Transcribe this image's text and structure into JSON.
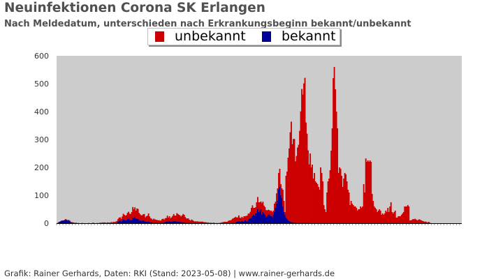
{
  "title": "Neuinfektionen Corona SK Erlangen",
  "subtitle": "Nach Meldedatum, unterschieden nach Erkrankungsbeginn bekannt/unbekannt",
  "footer": "Grafik: Rainer Gerhards, Daten: RKI (Stand: 2023-05-08) | www.rainer-gerhards.de",
  "colors": {
    "plot_background": "#cccccc",
    "unbekannt": "#cc0000",
    "bekannt": "#000099"
  },
  "chart_data": {
    "type": "bar",
    "stacked": true,
    "title": "Neuinfektionen Corona SK Erlangen",
    "subtitle": "Nach Meldedatum, unterschieden nach Erkrankungsbeginn bekannt/unbekannt",
    "xlabel": "",
    "ylabel": "",
    "ylim": [
      0,
      600
    ],
    "yticks": [
      0,
      100,
      200,
      300,
      400,
      500,
      600
    ],
    "legend": {
      "placement": "top-center",
      "entries": [
        "unbekannt",
        "bekannt"
      ]
    },
    "grid": false,
    "series": [
      {
        "name": "unbekannt",
        "values": [
          0,
          1,
          1,
          1,
          1,
          0,
          1,
          2,
          3,
          2,
          2,
          2,
          1,
          0,
          2,
          2,
          1,
          1,
          2,
          0,
          1,
          0,
          0,
          0,
          1,
          0,
          0,
          0,
          0,
          0,
          1,
          0,
          0,
          0,
          2,
          1,
          0,
          0,
          1,
          0,
          1,
          2,
          1,
          3,
          2,
          3,
          2,
          1,
          3,
          2,
          2,
          3,
          4,
          3,
          5,
          4,
          6,
          8,
          10,
          12,
          11,
          10,
          15,
          20,
          18,
          16,
          19,
          22,
          25,
          20,
          23,
          28,
          38,
          32,
          35,
          30,
          36,
          35,
          25,
          22,
          20,
          20,
          22,
          25,
          15,
          20,
          22,
          30,
          20,
          15,
          13,
          10,
          14,
          12,
          10,
          10,
          8,
          9,
          7,
          8,
          12,
          14,
          10,
          14,
          14,
          21,
          15,
          18,
          12,
          16,
          20,
          25,
          19,
          20,
          30,
          28,
          25,
          24,
          20,
          25,
          30,
          27,
          20,
          15,
          15,
          15,
          10,
          8,
          12,
          10,
          7,
          5,
          6,
          5,
          6,
          4,
          5,
          4,
          5,
          4,
          2,
          3,
          2,
          2,
          3,
          1,
          2,
          1,
          1,
          2,
          1,
          0,
          1,
          0,
          1,
          1,
          2,
          3,
          4,
          5,
          5,
          5,
          5,
          8,
          10,
          10,
          12,
          15,
          17,
          18,
          20,
          15,
          15,
          20,
          14,
          13,
          15,
          12,
          20,
          15,
          18,
          20,
          22,
          20,
          23,
          35,
          39,
          25,
          27,
          22,
          40,
          44,
          35,
          30,
          28,
          42,
          37,
          28,
          28,
          25,
          20,
          18,
          15,
          16,
          20,
          18,
          15,
          30,
          22,
          37,
          45,
          60,
          65,
          40,
          35,
          60,
          40,
          10,
          150,
          170,
          225,
          260,
          320,
          360,
          280,
          300,
          300,
          220,
          240,
          270,
          280,
          330,
          400,
          480,
          460,
          500,
          520,
          360,
          320,
          260,
          210,
          250,
          200,
          210,
          160,
          180,
          150,
          145,
          140,
          130,
          120,
          200,
          180,
          150,
          65,
          50,
          40,
          110,
          150,
          160,
          190,
          260,
          340,
          520,
          560,
          480,
          400,
          340,
          180,
          200,
          195,
          170,
          130,
          160,
          180,
          175,
          150,
          120,
          110,
          65,
          80,
          70,
          65,
          60,
          60,
          55,
          45,
          50,
          50,
          60,
          55,
          60,
          140,
          110,
          232,
          220,
          225,
          220,
          225,
          220,
          105,
          80,
          60,
          55,
          50,
          40,
          45,
          50,
          45,
          30,
          35,
          30,
          35,
          45,
          40,
          55,
          40,
          60,
          75,
          40,
          35,
          40,
          45,
          20,
          20,
          25,
          25,
          25,
          30,
          35,
          40,
          60,
          60,
          60,
          65,
          60,
          10,
          10,
          12,
          15,
          14,
          16,
          13,
          10,
          12,
          14,
          12,
          10,
          8,
          7,
          5,
          6,
          4,
          3,
          5,
          2
        ]
      },
      {
        "name": "bekannt",
        "values": [
          0,
          2,
          4,
          6,
          8,
          10,
          9,
          10,
          12,
          11,
          9,
          10,
          8,
          4,
          2,
          1,
          1,
          0,
          0,
          0,
          0,
          0,
          0,
          0,
          0,
          0,
          0,
          0,
          0,
          0,
          0,
          0,
          0,
          0,
          0,
          0,
          0,
          0,
          0,
          0,
          0,
          0,
          0,
          0,
          0,
          0,
          0,
          0,
          0,
          0,
          0,
          0,
          0,
          0,
          0,
          0,
          0,
          0,
          5,
          8,
          10,
          6,
          9,
          14,
          12,
          11,
          10,
          15,
          16,
          14,
          10,
          12,
          20,
          18,
          22,
          15,
          17,
          16,
          12,
          10,
          8,
          9,
          10,
          8,
          6,
          5,
          5,
          5,
          4,
          3,
          3,
          2,
          2,
          2,
          2,
          2,
          2,
          2,
          2,
          2,
          3,
          2,
          3,
          4,
          5,
          6,
          5,
          7,
          6,
          5,
          6,
          8,
          8,
          7,
          6,
          5,
          5,
          4,
          4,
          3,
          3,
          3,
          2,
          2,
          2,
          2,
          2,
          1,
          1,
          1,
          1,
          1,
          1,
          1,
          1,
          1,
          1,
          1,
          1,
          1,
          1,
          1,
          1,
          0,
          0,
          0,
          0,
          0,
          0,
          0,
          0,
          0,
          0,
          0,
          0,
          0,
          0,
          0,
          0,
          0,
          0,
          0,
          0,
          0,
          0,
          0,
          0,
          1,
          1,
          2,
          3,
          5,
          6,
          8,
          6,
          5,
          8,
          7,
          5,
          10,
          8,
          7,
          12,
          15,
          18,
          20,
          25,
          30,
          28,
          35,
          35,
          50,
          40,
          45,
          50,
          30,
          40,
          35,
          30,
          22,
          26,
          30,
          32,
          28,
          25,
          22,
          30,
          40,
          55,
          70,
          80,
          120,
          130,
          100,
          90,
          60,
          40,
          30,
          20,
          15,
          10,
          8,
          6,
          4,
          3,
          2,
          2,
          2,
          1,
          1,
          1,
          1,
          1,
          1,
          1,
          1,
          1,
          1,
          1,
          1,
          1,
          0,
          0,
          0,
          0,
          0,
          0,
          0,
          0,
          0,
          0,
          0,
          0,
          0,
          0,
          0,
          0,
          0,
          0,
          0,
          0,
          0,
          0,
          0,
          0,
          0,
          0,
          0,
          0,
          0,
          0,
          0,
          0,
          0,
          0,
          0,
          0,
          0,
          0,
          0,
          0,
          0,
          0,
          0,
          0,
          0,
          0,
          0,
          0,
          0,
          0,
          0,
          0,
          0,
          0,
          0,
          0,
          0,
          0,
          0,
          0,
          0,
          0,
          0,
          0,
          0,
          0,
          0,
          0,
          0,
          0,
          0,
          0,
          0,
          0,
          0,
          0,
          0,
          0,
          0,
          0,
          0,
          0,
          0,
          0,
          0,
          0,
          0,
          0,
          0,
          0,
          0,
          0,
          0,
          0,
          0,
          0,
          0,
          0,
          0,
          0,
          0,
          0,
          0,
          0,
          0,
          0,
          0,
          0,
          0,
          0,
          0,
          0,
          0,
          0,
          0,
          0,
          0,
          0,
          0,
          0,
          0,
          0,
          0,
          0,
          0,
          0,
          0,
          0,
          0,
          0,
          0,
          0,
          0,
          0,
          0,
          0,
          0,
          0,
          0,
          0,
          0,
          0,
          0,
          0,
          0
        ]
      }
    ]
  }
}
